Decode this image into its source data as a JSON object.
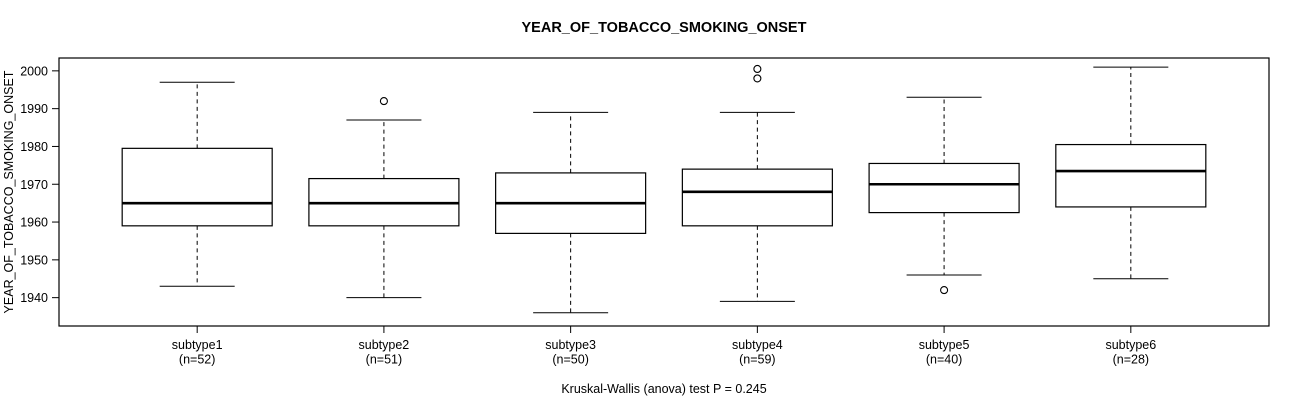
{
  "chart_data": {
    "type": "boxplot",
    "title": "YEAR_OF_TOBACCO_SMOKING_ONSET",
    "ylabel": "YEAR_OF_TOBACCO_SMOKING_ONSET",
    "xlabel": "",
    "footer": "Kruskal-Wallis (anova) test P = 0.245",
    "grid": false,
    "legend": "none",
    "ylim": [
      1932.5,
      2003.4
    ],
    "yticks": [
      1940,
      1950,
      1960,
      1970,
      1980,
      1990,
      2000
    ],
    "groups": [
      {
        "label": "subtype1",
        "n_label": "(n=52)",
        "n": 52,
        "whisker_low": 1943,
        "q1": 1959,
        "median": 1965,
        "q3": 1979.5,
        "whisker_high": 1997,
        "outliers": []
      },
      {
        "label": "subtype2",
        "n_label": "(n=51)",
        "n": 51,
        "whisker_low": 1940,
        "q1": 1959,
        "median": 1965,
        "q3": 1971.5,
        "whisker_high": 1987,
        "outliers": [
          1992
        ]
      },
      {
        "label": "subtype3",
        "n_label": "(n=50)",
        "n": 50,
        "whisker_low": 1936,
        "q1": 1957,
        "median": 1965,
        "q3": 1973,
        "whisker_high": 1989,
        "outliers": []
      },
      {
        "label": "subtype4",
        "n_label": "(n=59)",
        "n": 59,
        "whisker_low": 1939,
        "q1": 1959,
        "median": 1968,
        "q3": 1974,
        "whisker_high": 1989,
        "outliers": [
          1998,
          2000.5
        ]
      },
      {
        "label": "subtype5",
        "n_label": "(n=40)",
        "n": 40,
        "whisker_low": 1946,
        "q1": 1962.5,
        "median": 1970,
        "q3": 1975.5,
        "whisker_high": 1993,
        "outliers": [
          1942
        ]
      },
      {
        "label": "subtype6",
        "n_label": "(n=28)",
        "n": 28,
        "whisker_low": 1945,
        "q1": 1964,
        "median": 1973.5,
        "q3": 1980.5,
        "whisker_high": 2001,
        "outliers": []
      }
    ],
    "colors": {
      "line": "#000000",
      "box_fill": "#ffffff",
      "background": "#ffffff"
    }
  }
}
